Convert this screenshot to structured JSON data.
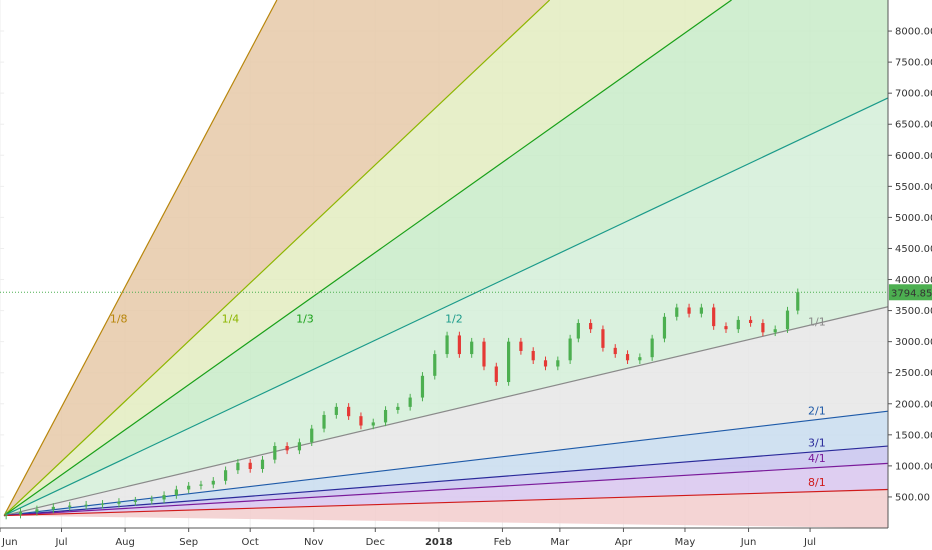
{
  "chart_data": {
    "type": "candlestick",
    "title": "",
    "xlabel": "",
    "ylabel": "",
    "ylim": [
      0,
      8500
    ],
    "grid": true,
    "price_axis": {
      "ticks": [
        "500.00",
        "1000.00",
        "1500.00",
        "2000.00",
        "2500.00",
        "3000.00",
        "3500.00",
        "4000.00",
        "4500.00",
        "5000.00",
        "5500.00",
        "6000.00",
        "6500.00",
        "7000.00",
        "7500.00",
        "8000.00"
      ],
      "tick_values": [
        500,
        1000,
        1500,
        2000,
        2500,
        3000,
        3500,
        4000,
        4500,
        5000,
        5500,
        6000,
        6500,
        7000,
        7500,
        8000
      ]
    },
    "time_axis": {
      "labels": [
        "Jun",
        "Jul",
        "Aug",
        "Sep",
        "Oct",
        "Nov",
        "Dec",
        "2018",
        "Feb",
        "Mar",
        "Apr",
        "May",
        "Jun",
        "Jul"
      ],
      "day_index": [
        0,
        30,
        61,
        92,
        122,
        153,
        183,
        214,
        245,
        273,
        304,
        334,
        365,
        395
      ],
      "xlim": [
        0,
        433
      ]
    },
    "last_price": {
      "value": 3794.85,
      "label": "3794.85",
      "color": "#4caf50"
    },
    "gann_fan": {
      "origin": {
        "day": 2,
        "price": 200
      },
      "one_by_one_slope": 7.8,
      "lines": [
        {
          "name": "1/8",
          "ratio": 8,
          "color": "#b8860b",
          "fill": "#e6c9a8"
        },
        {
          "name": "1/4",
          "ratio": 4,
          "color": "#8db600",
          "fill": "#e3ecc0"
        },
        {
          "name": "1/3",
          "ratio": 3,
          "color": "#19a019",
          "fill": "#c8ebc8"
        },
        {
          "name": "1/2",
          "ratio": 2,
          "color": "#1a9a8a",
          "fill": "#d4eed8"
        },
        {
          "name": "1/1",
          "ratio": 1,
          "color": "#8a8a8a",
          "fill": "#e6e6e6"
        },
        {
          "name": "2/1",
          "ratio": 0.5,
          "color": "#1e5aa8",
          "fill": "#c8dcee"
        },
        {
          "name": "3/1",
          "ratio": 0.333,
          "color": "#2a2a9a",
          "fill": "#c8c4ee"
        },
        {
          "name": "4/1",
          "ratio": 0.25,
          "color": "#7a1a9a",
          "fill": "#d8c6ee"
        },
        {
          "name": "8/1",
          "ratio": 0.125,
          "color": "#d01a1a",
          "fill": "#f2cccc"
        }
      ],
      "bottom_fill": "#ffffff"
    },
    "candles": [
      [
        3,
        215,
        200
      ],
      [
        10,
        260,
        215
      ],
      [
        18,
        300,
        260
      ],
      [
        26,
        340,
        300
      ],
      [
        34,
        360,
        340
      ],
      [
        42,
        375,
        360
      ],
      [
        50,
        390,
        375
      ],
      [
        58,
        420,
        390
      ],
      [
        66,
        440,
        420
      ],
      [
        74,
        460,
        440
      ],
      [
        80,
        530,
        460
      ],
      [
        86,
        620,
        530
      ],
      [
        92,
        680,
        620
      ],
      [
        98,
        700,
        680
      ],
      [
        104,
        760,
        700
      ],
      [
        110,
        930,
        760
      ],
      [
        116,
        1050,
        930
      ],
      [
        122,
        950,
        1050
      ],
      [
        128,
        1100,
        950
      ],
      [
        134,
        1320,
        1100
      ],
      [
        140,
        1250,
        1320
      ],
      [
        146,
        1380,
        1250
      ],
      [
        152,
        1600,
        1380
      ],
      [
        158,
        1820,
        1600
      ],
      [
        164,
        1950,
        1820
      ],
      [
        170,
        1800,
        1950
      ],
      [
        176,
        1650,
        1800
      ],
      [
        182,
        1700,
        1650
      ],
      [
        188,
        1900,
        1700
      ],
      [
        194,
        1950,
        1900
      ],
      [
        200,
        2100,
        1950
      ],
      [
        206,
        2450,
        2100
      ],
      [
        212,
        2800,
        2450
      ],
      [
        218,
        3100,
        2800
      ],
      [
        224,
        2800,
        3100
      ],
      [
        230,
        3000,
        2800
      ],
      [
        236,
        2600,
        3000
      ],
      [
        242,
        2350,
        2600
      ],
      [
        248,
        3000,
        2350
      ],
      [
        254,
        2850,
        3000
      ],
      [
        260,
        2700,
        2850
      ],
      [
        266,
        2600,
        2700
      ],
      [
        272,
        2700,
        2600
      ],
      [
        278,
        3050,
        2700
      ],
      [
        282,
        3300,
        3050
      ],
      [
        288,
        3200,
        3300
      ],
      [
        294,
        2900,
        3200
      ],
      [
        300,
        2800,
        2900
      ],
      [
        306,
        2700,
        2800
      ],
      [
        312,
        2750,
        2700
      ],
      [
        318,
        3050,
        2750
      ],
      [
        324,
        3400,
        3050
      ],
      [
        330,
        3550,
        3400
      ],
      [
        336,
        3450,
        3550
      ],
      [
        342,
        3550,
        3450
      ],
      [
        348,
        3250,
        3550
      ],
      [
        354,
        3200,
        3250
      ],
      [
        360,
        3350,
        3200
      ],
      [
        366,
        3300,
        3350
      ],
      [
        372,
        3150,
        3300
      ],
      [
        378,
        3200,
        3150
      ],
      [
        384,
        3500,
        3200
      ],
      [
        389,
        3794.85,
        3500
      ]
    ],
    "series_colors": {
      "up": "#4caf50",
      "down": "#e53935"
    }
  }
}
